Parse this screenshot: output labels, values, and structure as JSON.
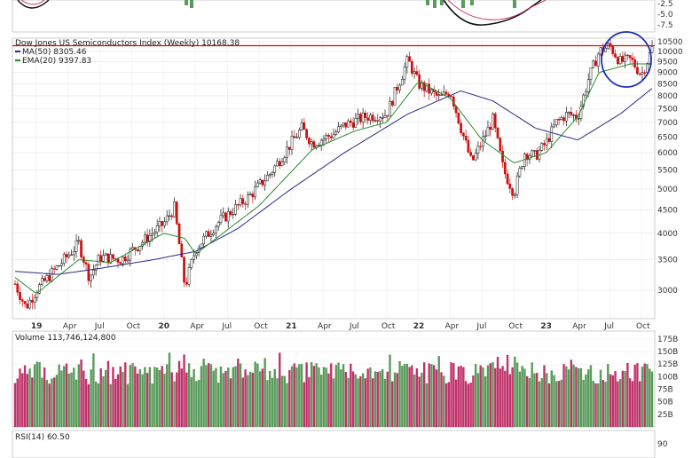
{
  "chart_data": {
    "type": "candlestick",
    "title": "Dow Jones US Semiconductors Index (Weekly) 10168.38",
    "x_ticks": [
      "19",
      "Apr",
      "Jul",
      "Oct",
      "20",
      "Apr",
      "Jul",
      "Oct",
      "21",
      "Apr",
      "Jul",
      "Oct",
      "22",
      "Apr",
      "Jul",
      "Oct",
      "23",
      "Apr",
      "Jul",
      "Oct"
    ],
    "x_range": [
      "2018-11",
      "2023-11"
    ],
    "price_axis": {
      "scale": "log",
      "ylim": [
        2600,
        10700
      ],
      "ticks": [
        "10500",
        "10000",
        "9500",
        "9000",
        "8500",
        "8000",
        "7500",
        "7000",
        "6500",
        "6000",
        "5500",
        "5000",
        "4500",
        "4000",
        "3500",
        "3000"
      ]
    },
    "legend": [
      {
        "name": "MA(50) 8305.46",
        "color": "#2a2a8a"
      },
      {
        "name": "EMA(20) 9397.83",
        "color": "#2a8a2a"
      }
    ],
    "horizontal_line": {
      "value": 10300,
      "color": "#cc1111"
    },
    "price_anchors": [
      {
        "date": "2018-11",
        "close": 3100
      },
      {
        "date": "2018-12",
        "close": 2750
      },
      {
        "date": "2019-01",
        "close": 3000
      },
      {
        "date": "2019-05",
        "close": 3800
      },
      {
        "date": "2019-06",
        "close": 3200
      },
      {
        "date": "2019-07",
        "close": 3550
      },
      {
        "date": "2019-09",
        "close": 3500
      },
      {
        "date": "2020-01",
        "close": 4200
      },
      {
        "date": "2020-02",
        "close": 4550
      },
      {
        "date": "2020-03",
        "close": 3050
      },
      {
        "date": "2020-04",
        "close": 3700
      },
      {
        "date": "2020-06",
        "close": 4200
      },
      {
        "date": "2020-09",
        "close": 4800
      },
      {
        "date": "2020-11",
        "close": 5400
      },
      {
        "date": "2021-02",
        "close": 6800
      },
      {
        "date": "2021-03",
        "close": 6300
      },
      {
        "date": "2021-05",
        "close": 6600
      },
      {
        "date": "2021-06",
        "close": 6900
      },
      {
        "date": "2021-08",
        "close": 7200
      },
      {
        "date": "2021-10",
        "close": 7300
      },
      {
        "date": "2021-12",
        "close": 9600
      },
      {
        "date": "2022-01",
        "close": 8500
      },
      {
        "date": "2022-03",
        "close": 7900
      },
      {
        "date": "2022-04",
        "close": 8200
      },
      {
        "date": "2022-05",
        "close": 6800
      },
      {
        "date": "2022-06",
        "close": 5700
      },
      {
        "date": "2022-08",
        "close": 7100
      },
      {
        "date": "2022-09",
        "close": 5500
      },
      {
        "date": "2022-10",
        "close": 4900
      },
      {
        "date": "2022-11",
        "close": 6000
      },
      {
        "date": "2022-12",
        "close": 5900
      },
      {
        "date": "2023-01",
        "close": 6300
      },
      {
        "date": "2023-02",
        "close": 7000
      },
      {
        "date": "2023-03",
        "close": 7300
      },
      {
        "date": "2023-04",
        "close": 7200
      },
      {
        "date": "2023-05",
        "close": 8700
      },
      {
        "date": "2023-06",
        "close": 10000
      },
      {
        "date": "2023-07",
        "close": 10300
      },
      {
        "date": "2023-08",
        "close": 9500
      },
      {
        "date": "2023-09",
        "close": 9600
      },
      {
        "date": "2023-10",
        "close": 8900
      },
      {
        "date": "2023-11",
        "close": 10168
      }
    ],
    "ma50_anchors": [
      {
        "date": "2018-11",
        "value": 3300
      },
      {
        "date": "2019-03",
        "value": 3250
      },
      {
        "date": "2019-07",
        "value": 3350
      },
      {
        "date": "2019-12",
        "value": 3500
      },
      {
        "date": "2020-04",
        "value": 3650
      },
      {
        "date": "2020-08",
        "value": 4100
      },
      {
        "date": "2021-01",
        "value": 5000
      },
      {
        "date": "2021-06",
        "value": 6000
      },
      {
        "date": "2021-12",
        "value": 7300
      },
      {
        "date": "2022-05",
        "value": 8200
      },
      {
        "date": "2022-08",
        "value": 7800
      },
      {
        "date": "2022-12",
        "value": 6800
      },
      {
        "date": "2023-04",
        "value": 6400
      },
      {
        "date": "2023-08",
        "value": 7300
      },
      {
        "date": "2023-11",
        "value": 8305
      }
    ],
    "ema20_anchors": [
      {
        "date": "2018-11",
        "value": 3200
      },
      {
        "date": "2019-01",
        "value": 2950
      },
      {
        "date": "2019-05",
        "value": 3500
      },
      {
        "date": "2019-08",
        "value": 3450
      },
      {
        "date": "2020-01",
        "value": 4000
      },
      {
        "date": "2020-03",
        "value": 3900
      },
      {
        "date": "2020-04",
        "value": 3600
      },
      {
        "date": "2020-10",
        "value": 4600
      },
      {
        "date": "2021-03",
        "value": 6100
      },
      {
        "date": "2021-07",
        "value": 6700
      },
      {
        "date": "2021-10",
        "value": 7000
      },
      {
        "date": "2022-01",
        "value": 8600
      },
      {
        "date": "2022-04",
        "value": 7900
      },
      {
        "date": "2022-07",
        "value": 6400
      },
      {
        "date": "2022-10",
        "value": 5700
      },
      {
        "date": "2023-01",
        "value": 6000
      },
      {
        "date": "2023-04",
        "value": 7200
      },
      {
        "date": "2023-06",
        "value": 9000
      },
      {
        "date": "2023-09",
        "value": 9400
      },
      {
        "date": "2023-11",
        "value": 9398
      }
    ],
    "volume_panel": {
      "title": "Volume 113,746,124,800",
      "ylim": [
        0,
        180
      ],
      "ticks": [
        "175B",
        "150B",
        "125B",
        "100B",
        "75B",
        "50B",
        "25B"
      ]
    },
    "rsi_panel": {
      "title": "RSI(14) 60.50",
      "ticks": [
        "90"
      ]
    },
    "top_panel_ticks": [
      "-2.5",
      "-5.0",
      "-7.5"
    ]
  }
}
